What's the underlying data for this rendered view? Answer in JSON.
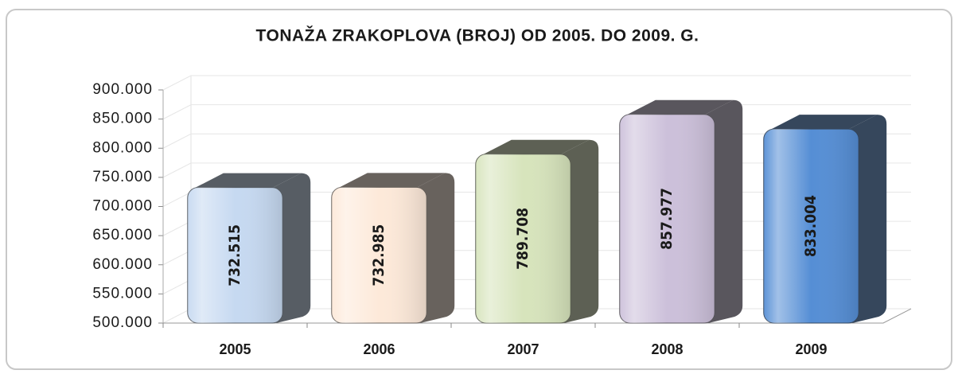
{
  "chart_data": {
    "type": "bar3d",
    "title": "TONAŽA ZRAKOPLOVA (BROJ) OD 2005. DO 2009. G.",
    "categories": [
      "2005",
      "2006",
      "2007",
      "2008",
      "2009"
    ],
    "values": [
      732515,
      732985,
      789708,
      857977,
      833004
    ],
    "value_labels": [
      "732.515",
      "732.985",
      "789.708",
      "857.977",
      "833.004"
    ],
    "colors": [
      "#c6d9f1",
      "#fde9d9",
      "#d7e4bc",
      "#ccc0da",
      "#558ed5"
    ],
    "ylim": [
      500000,
      900000
    ],
    "yticks": [
      {
        "value": 500000,
        "label": "500.000"
      },
      {
        "value": 550000,
        "label": "550.000"
      },
      {
        "value": 600000,
        "label": "600.000"
      },
      {
        "value": 650000,
        "label": "650.000"
      },
      {
        "value": 700000,
        "label": "700.000"
      },
      {
        "value": 750000,
        "label": "750.000"
      },
      {
        "value": 800000,
        "label": "800.000"
      },
      {
        "value": 850000,
        "label": "850.000"
      },
      {
        "value": 900000,
        "label": "900.000"
      }
    ],
    "grid": true
  }
}
